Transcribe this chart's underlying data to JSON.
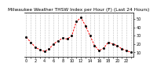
{
  "title": "Milwaukee Weather THSW Index per Hour (F) (Last 24 Hours)",
  "hours": [
    0,
    1,
    2,
    3,
    4,
    5,
    6,
    7,
    8,
    9,
    10,
    11,
    12,
    13,
    14,
    15,
    16,
    17,
    18,
    19,
    20,
    21,
    22,
    23
  ],
  "values": [
    28,
    22,
    16,
    13,
    11,
    14,
    20,
    24,
    27,
    26,
    30,
    47,
    52,
    42,
    30,
    18,
    12,
    15,
    22,
    20,
    18,
    14,
    12,
    10
  ],
  "line_color": "#ff0000",
  "marker_color": "#000000",
  "background_color": "#ffffff",
  "grid_color": "#888888",
  "ylim": [
    5,
    58
  ],
  "yticks": [
    10,
    20,
    30,
    40,
    50
  ],
  "ytick_labels": [
    "10",
    "20",
    "30",
    "40",
    "50"
  ],
  "xtick_step": 2,
  "title_fontsize": 4.2,
  "tick_fontsize": 3.5,
  "line_width": 0.7,
  "marker_size": 1.0
}
